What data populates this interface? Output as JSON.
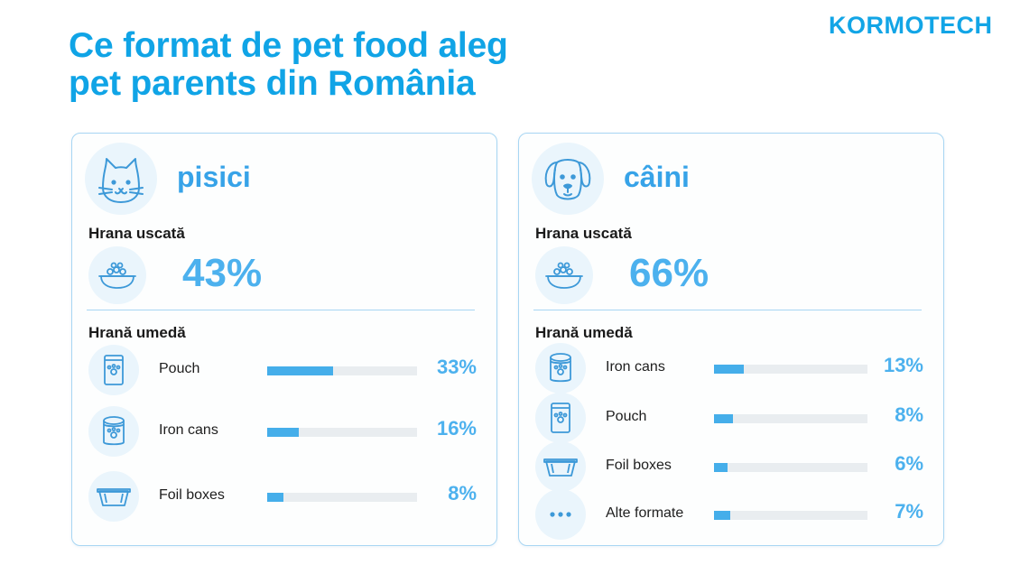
{
  "title_lines": [
    "Ce format de pet food aleg",
    "pet parents din România"
  ],
  "logo_text": "KORMOTECH",
  "colors": {
    "accent": "#10a4e6",
    "value": "#4cb1ee",
    "bar_fill": "#45aeea",
    "bar_track": "#e9edf0",
    "panel_border": "#a8d6f3",
    "icon_bg": "#eaf5fc"
  },
  "panels": [
    {
      "animal": "pisici",
      "icon": "cat-icon",
      "dry_label": "Hrana uscată",
      "dry_value": "43%",
      "wet_label": "Hrană umedă",
      "rows": [
        {
          "label": "Pouch",
          "value": "33%",
          "icon": "pouch-icon"
        },
        {
          "label": "Iron cans",
          "value": "16%",
          "icon": "can-icon"
        },
        {
          "label": "Foil boxes",
          "value": "8%",
          "icon": "foil-box-icon"
        }
      ]
    },
    {
      "animal": "câini",
      "icon": "dog-icon",
      "dry_label": "Hrana uscată",
      "dry_value": "66%",
      "wet_label": "Hrană umedă",
      "rows": [
        {
          "label": "Iron cans",
          "value": "13%",
          "icon": "can-icon"
        },
        {
          "label": "Pouch",
          "value": "8%",
          "icon": "pouch-icon"
        },
        {
          "label": "Foil boxes",
          "value": "6%",
          "icon": "foil-box-icon"
        },
        {
          "label": "Alte formate",
          "value": "7%",
          "icon": "more-dots-icon"
        }
      ]
    }
  ],
  "chart_data": [
    {
      "type": "bar",
      "title": "pisici",
      "categories": [
        "Pouch",
        "Iron cans",
        "Foil boxes"
      ],
      "values": [
        33,
        16,
        8
      ],
      "ylim": [
        0,
        75
      ]
    },
    {
      "type": "bar",
      "title": "câini",
      "categories": [
        "Iron cans",
        "Pouch",
        "Foil boxes",
        "Alte formate"
      ],
      "values": [
        13,
        8,
        6,
        7
      ],
      "ylim": [
        0,
        66
      ]
    }
  ]
}
